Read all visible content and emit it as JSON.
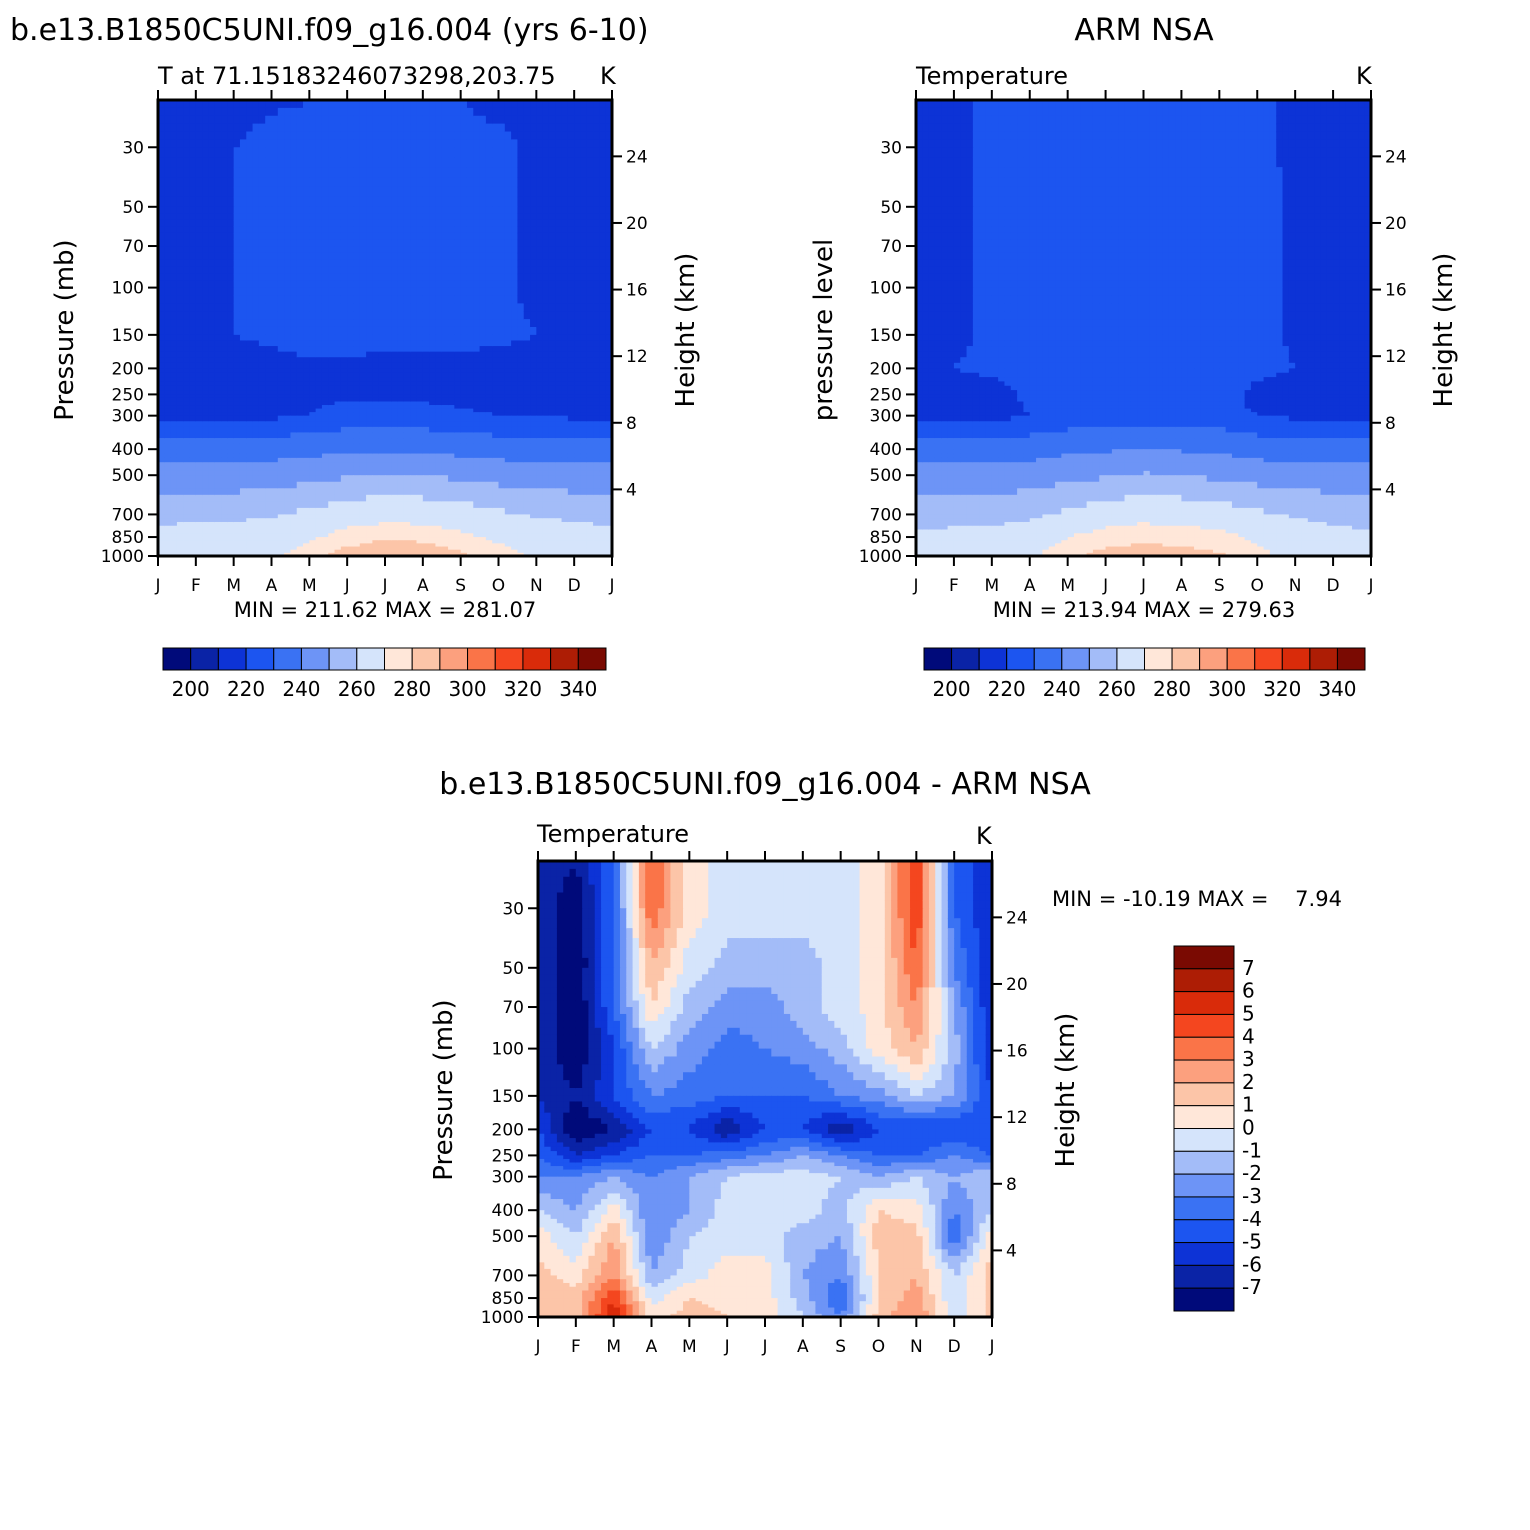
{
  "palette": {
    "temperature_colors": [
      "#000a7a",
      "#0a23a6",
      "#0d33d6",
      "#1c55f0",
      "#3a72f3",
      "#6d94f6",
      "#a3bcf8",
      "#d5e4fb",
      "#ffe7d9",
      "#fcc5a8",
      "#fca07e",
      "#fa7448",
      "#f4461f",
      "#d92b0a",
      "#ad1d05",
      "#7a0a02"
    ],
    "difference_colors": [
      "#000a7a",
      "#0a23a6",
      "#0d33d6",
      "#1c55f0",
      "#3a72f3",
      "#6d94f6",
      "#a3bcf8",
      "#d5e4fb",
      "#ffe7d9",
      "#fcc5a8",
      "#fca07e",
      "#fa7448",
      "#f4461f",
      "#d92b0a",
      "#ad1d05",
      "#7a0a02"
    ]
  },
  "chart_data": [
    {
      "id": "model",
      "type": "heatmap",
      "title": "b.e13.B1850C5UNI.f09_g16.004 (yrs 6-10)",
      "subtitle_left": "T at 71.15183246073298,203.75",
      "subtitle_right": "K",
      "xlabel": "",
      "ylabel": "Pressure (mb)",
      "ylabel_right": "Height (km)",
      "x_ticks": [
        "J",
        "F",
        "M",
        "A",
        "M",
        "J",
        "J",
        "A",
        "S",
        "O",
        "N",
        "D",
        "J"
      ],
      "y_ticks": [
        30,
        50,
        70,
        100,
        150,
        200,
        250,
        300,
        400,
        500,
        700,
        850,
        1000
      ],
      "y_right_ticks": [
        4,
        8,
        12,
        16,
        20,
        24
      ],
      "ylim": [
        20,
        1000
      ],
      "min_max_label": "MIN = 211.62 MAX = 281.07",
      "colorbar_ticks": [
        "200",
        "220",
        "240",
        "260",
        "280",
        "300",
        "320",
        "340"
      ],
      "levels": [
        195,
        200,
        205,
        210,
        215,
        220,
        230,
        240,
        250,
        260,
        270,
        280,
        290,
        300,
        310,
        320,
        330,
        340,
        345
      ],
      "month_bands": {
        "x": [
          0,
          1,
          2,
          3,
          4,
          5,
          6,
          7,
          8,
          9,
          10,
          11,
          12
        ],
        "pressure": [
          20,
          30,
          50,
          70,
          100,
          150,
          200,
          250,
          300,
          400,
          500,
          700,
          850,
          1000
        ],
        "values": [
          [
            212,
            213,
            214,
            215,
            216,
            217,
            218,
            217,
            216,
            215,
            214,
            213,
            212
          ],
          [
            212,
            213,
            216,
            218,
            219,
            220,
            219,
            218,
            217,
            217,
            215,
            213,
            212
          ],
          [
            212,
            213,
            216,
            218,
            219,
            220,
            220,
            219,
            218,
            217,
            215,
            213,
            212
          ],
          [
            212,
            213,
            216,
            218,
            219,
            220,
            220,
            219,
            218,
            217,
            215,
            213,
            212
          ],
          [
            212,
            213,
            216,
            218,
            219,
            220,
            220,
            219,
            218,
            217,
            215,
            213,
            212
          ],
          [
            213,
            214,
            216,
            217,
            218,
            218,
            218,
            218,
            218,
            217,
            216,
            214,
            213
          ],
          [
            214,
            214,
            214,
            214,
            215,
            215,
            214,
            214,
            214,
            214,
            214,
            214,
            214
          ],
          [
            214,
            214,
            214,
            214,
            215,
            215,
            215,
            215,
            214,
            214,
            214,
            214,
            214
          ],
          [
            215,
            215,
            215,
            215,
            216,
            218,
            219,
            218,
            217,
            216,
            216,
            215,
            215
          ],
          [
            225,
            225,
            225,
            226,
            227,
            228,
            229,
            228,
            227,
            226,
            225,
            225,
            225
          ],
          [
            234,
            234,
            234,
            235,
            237,
            239,
            241,
            240,
            238,
            236,
            235,
            234,
            234
          ],
          [
            247,
            248,
            248,
            249,
            252,
            256,
            258,
            257,
            255,
            252,
            249,
            248,
            247
          ],
          [
            253,
            254,
            254,
            256,
            260,
            266,
            269,
            268,
            264,
            260,
            256,
            254,
            253
          ],
          [
            253,
            255,
            256,
            259,
            268,
            274,
            276,
            275,
            272,
            266,
            260,
            256,
            253
          ]
        ]
      }
    },
    {
      "id": "obs",
      "type": "heatmap",
      "title": "ARM NSA",
      "subtitle_left": "Temperature",
      "subtitle_right": "K",
      "xlabel": "",
      "ylabel": "pressure level",
      "ylabel_right": "Height (km)",
      "x_ticks": [
        "J",
        "F",
        "M",
        "A",
        "M",
        "J",
        "J",
        "A",
        "S",
        "O",
        "N",
        "D",
        "J"
      ],
      "y_ticks": [
        30,
        50,
        70,
        100,
        150,
        200,
        250,
        300,
        400,
        500,
        700,
        850,
        1000
      ],
      "y_right_ticks": [
        4,
        8,
        12,
        16,
        20,
        24
      ],
      "ylim": [
        20,
        1000
      ],
      "min_max_label": "MIN = 213.94 MAX = 279.63",
      "colorbar_ticks": [
        "200",
        "220",
        "240",
        "260",
        "280",
        "300",
        "320",
        "340"
      ],
      "levels": [
        195,
        200,
        205,
        210,
        215,
        220,
        230,
        240,
        250,
        260,
        270,
        280,
        290,
        300,
        310,
        320,
        330,
        340,
        345
      ],
      "month_bands": {
        "x": [
          0,
          1,
          2,
          3,
          4,
          5,
          6,
          7,
          8,
          9,
          10,
          11,
          12
        ],
        "pressure": [
          20,
          30,
          50,
          70,
          100,
          150,
          200,
          250,
          300,
          400,
          500,
          700,
          850,
          1000
        ],
        "values": [
          [
            214,
            215,
            217,
            219,
            220,
            221,
            222,
            221,
            220,
            217,
            215,
            214,
            214
          ],
          [
            214,
            215,
            217,
            219,
            220,
            221,
            221,
            221,
            220,
            217,
            215,
            214,
            214
          ],
          [
            214,
            215,
            217,
            219,
            220,
            221,
            221,
            221,
            220,
            218,
            215,
            214,
            214
          ],
          [
            214,
            215,
            217,
            219,
            220,
            221,
            221,
            221,
            220,
            218,
            215,
            214,
            214
          ],
          [
            214,
            215,
            217,
            219,
            220,
            221,
            221,
            221,
            220,
            218,
            215,
            214,
            214
          ],
          [
            214,
            215,
            217,
            219,
            220,
            221,
            221,
            221,
            220,
            218,
            215,
            214,
            214
          ],
          [
            216,
            216,
            217,
            219,
            220,
            221,
            221,
            221,
            220,
            218,
            216,
            215,
            215
          ],
          [
            213,
            213,
            214,
            217,
            219,
            220,
            220,
            220,
            219,
            214,
            213,
            213,
            213
          ],
          [
            214,
            214,
            214,
            216,
            218,
            219,
            219,
            219,
            218,
            216,
            215,
            214,
            214
          ],
          [
            225,
            225,
            225,
            226,
            228,
            229,
            230,
            229,
            228,
            226,
            225,
            225,
            225
          ],
          [
            234,
            234,
            234,
            235,
            237,
            239,
            241,
            240,
            238,
            236,
            235,
            234,
            234
          ],
          [
            246,
            246,
            246,
            248,
            252,
            256,
            258,
            257,
            255,
            252,
            249,
            247,
            246
          ],
          [
            252,
            253,
            254,
            256,
            262,
            266,
            268,
            267,
            265,
            260,
            256,
            253,
            252
          ],
          [
            252,
            253,
            255,
            260,
            268,
            273,
            274,
            273,
            271,
            265,
            258,
            254,
            252
          ]
        ]
      }
    },
    {
      "id": "diff",
      "type": "heatmap",
      "title": "b.e13.B1850C5UNI.f09_g16.004 - ARM NSA",
      "subtitle_left": "Temperature",
      "subtitle_right": "K",
      "xlabel": "",
      "ylabel": "Pressure (mb)",
      "ylabel_right": "Height (km)",
      "x_ticks": [
        "J",
        "F",
        "M",
        "A",
        "M",
        "J",
        "J",
        "A",
        "S",
        "O",
        "N",
        "D",
        "J"
      ],
      "y_ticks": [
        30,
        50,
        70,
        100,
        150,
        200,
        250,
        300,
        400,
        500,
        700,
        850,
        1000
      ],
      "y_right_ticks": [
        4,
        8,
        12,
        16,
        20,
        24
      ],
      "ylim": [
        20,
        1000
      ],
      "min_max_label": "MIN = -10.19 MAX =    7.94",
      "colorbar_ticks": [
        "7",
        "6",
        "5",
        "4",
        "3",
        "2",
        "1",
        "0",
        "-1",
        "-2",
        "-3",
        "-4",
        "-5",
        "-6",
        "-7"
      ],
      "levels": [
        -8,
        -7,
        -6,
        -5,
        -4,
        -3,
        -2,
        -1,
        0,
        1,
        2,
        3,
        4,
        5,
        6,
        7,
        8
      ],
      "month_bands": {
        "x": [
          0,
          1,
          2,
          3,
          4,
          5,
          6,
          7,
          8,
          9,
          10,
          11,
          12
        ],
        "pressure": [
          20,
          30,
          50,
          70,
          100,
          150,
          200,
          250,
          300,
          400,
          500,
          700,
          850,
          1000
        ],
        "values": [
          [
            -6,
            -7,
            -4,
            4,
            0.5,
            -0.5,
            -0.5,
            -0.5,
            -0.5,
            0.5,
            5,
            -4,
            -6
          ],
          [
            -6,
            -8,
            -4,
            4,
            0.5,
            -0.5,
            -0.5,
            -0.5,
            -0.5,
            0.5,
            5,
            -4,
            -6
          ],
          [
            -6,
            -8,
            -4,
            2,
            -0.5,
            -1.5,
            -1.5,
            -1.5,
            -0.5,
            0.5,
            4,
            -3,
            -6
          ],
          [
            -6,
            -8,
            -4,
            1,
            -1.5,
            -2.5,
            -2.5,
            -1.5,
            -0.5,
            0.5,
            3,
            -2,
            -6
          ],
          [
            -6,
            -8,
            -5,
            -1,
            -2.5,
            -3.5,
            -3,
            -2.5,
            -1.5,
            0.5,
            2,
            -1.5,
            -6
          ],
          [
            -6,
            -7,
            -5,
            -3,
            -3.5,
            -4,
            -4,
            -4,
            -3,
            -2.5,
            -1,
            -2,
            -5
          ],
          [
            -5,
            -8,
            -7,
            -5,
            -5,
            -7,
            -5,
            -5,
            -7,
            -5,
            -5,
            -5,
            -5
          ],
          [
            -4,
            -6,
            -5,
            -4,
            -4,
            -3.5,
            -3,
            -2,
            -3,
            -4,
            -4,
            -3,
            -4
          ],
          [
            -3,
            -3,
            -2,
            -3,
            -2,
            -1,
            -0.5,
            -0.5,
            -1,
            -2,
            -1,
            -2,
            -1
          ],
          [
            -1,
            -2,
            0.5,
            -3,
            -2,
            -0.5,
            -0.5,
            -0.5,
            -1.5,
            1,
            0.5,
            -3,
            -1
          ],
          [
            0.5,
            -1,
            2,
            -3,
            -1,
            -0.5,
            -0.5,
            -1.5,
            -2,
            1.5,
            1.5,
            -4,
            0.5
          ],
          [
            1.5,
            0.5,
            3,
            -2,
            -0.5,
            0.5,
            0.5,
            -2,
            -3,
            1,
            2,
            -1,
            1.5
          ],
          [
            2,
            1.5,
            5,
            -0.5,
            1,
            0.5,
            0.5,
            -1.5,
            -4,
            1,
            2.5,
            -1,
            1.5
          ],
          [
            2,
            1.5,
            6,
            0.5,
            1.5,
            1,
            0.5,
            -1,
            -3,
            1.5,
            3,
            -0.5,
            1.5
          ]
        ]
      }
    }
  ]
}
